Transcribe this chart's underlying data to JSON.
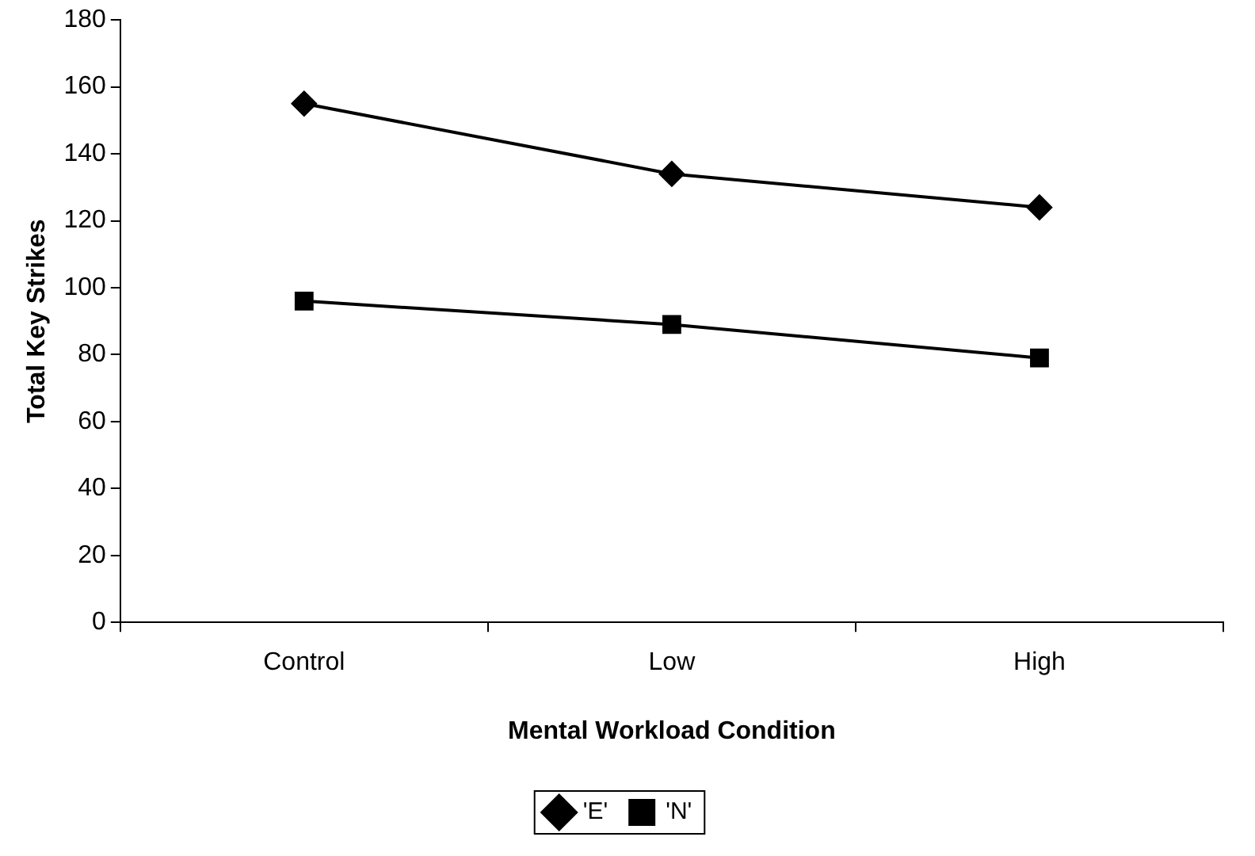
{
  "chart_data": {
    "type": "line",
    "xlabel": "Mental Workload Condition",
    "ylabel": "Total Key Strikes",
    "categories": [
      "Control",
      "Low",
      "High"
    ],
    "series": [
      {
        "name": "'E'",
        "color": "#000000",
        "marker": "diamond",
        "values": [
          155,
          134,
          124
        ]
      },
      {
        "name": "'N'",
        "color": "#000000",
        "marker": "square",
        "values": [
          96,
          89,
          79
        ]
      }
    ],
    "ylim": [
      0,
      180
    ],
    "yticks": [
      0,
      20,
      40,
      60,
      80,
      100,
      120,
      140,
      160,
      180
    ],
    "grid": false,
    "legend": "bottom"
  }
}
